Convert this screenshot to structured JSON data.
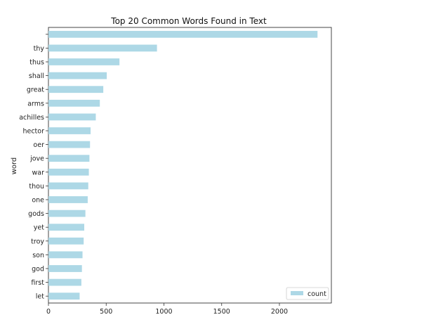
{
  "chart_data": {
    "type": "bar",
    "orientation": "horizontal",
    "title": "Top 20 Common Words Found in Text",
    "xlabel": "",
    "ylabel": "word",
    "xlim": [
      0,
      2450
    ],
    "xticks": [
      0,
      500,
      1000,
      1500,
      2000
    ],
    "grid": false,
    "legend_position": "lower-right",
    "bar_color": "#add8e6",
    "categories": [
      "",
      "thy",
      "thus",
      "shall",
      "great",
      "arms",
      "achilles",
      "hector",
      "oer",
      "jove",
      "war",
      "thou",
      "one",
      "gods",
      "yet",
      "troy",
      "son",
      "god",
      "first",
      "let"
    ],
    "series": [
      {
        "name": "count",
        "values": [
          2330,
          940,
          615,
          505,
          475,
          445,
          410,
          365,
          360,
          355,
          350,
          345,
          340,
          320,
          310,
          305,
          295,
          290,
          285,
          270
        ]
      }
    ]
  }
}
